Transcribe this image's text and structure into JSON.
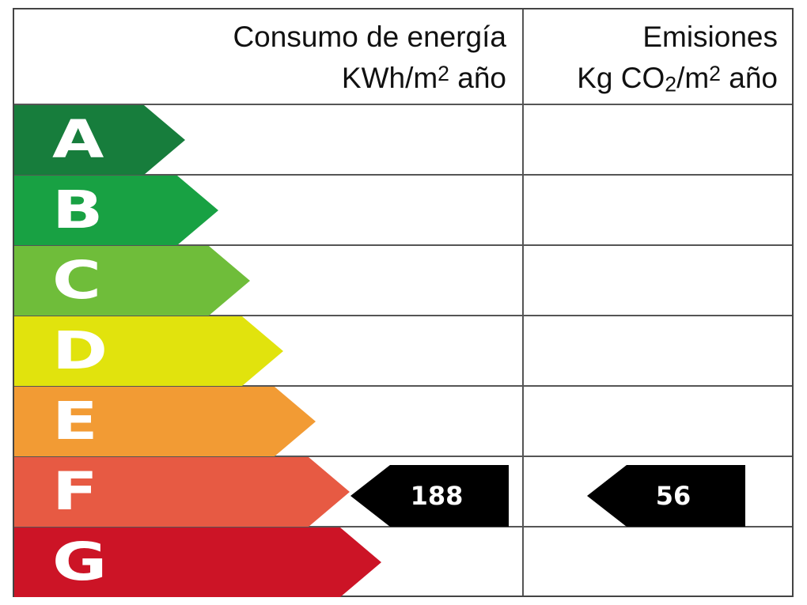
{
  "header": {
    "energy": {
      "line1": "Consumo de energía",
      "unit_prefix": "KWh/m",
      "unit_superscript": "2",
      "unit_suffix": " año"
    },
    "emissions": {
      "line1": "Emisiones",
      "unit_prefix": "Kg CO",
      "unit_subscript": "2",
      "unit_middle": "/m",
      "unit_superscript": "2",
      "unit_suffix": " año"
    }
  },
  "ratings": [
    {
      "letter": "A",
      "color": "#177d3c"
    },
    {
      "letter": "B",
      "color": "#18a143"
    },
    {
      "letter": "C",
      "color": "#6fbd3a"
    },
    {
      "letter": "D",
      "color": "#e1e30d"
    },
    {
      "letter": "E",
      "color": "#f29b34"
    },
    {
      "letter": "F",
      "color": "#e75a43"
    },
    {
      "letter": "G",
      "color": "#cc1426"
    }
  ],
  "current_rating": {
    "class": "F",
    "energy_consumption": "188",
    "emissions": "56"
  }
}
